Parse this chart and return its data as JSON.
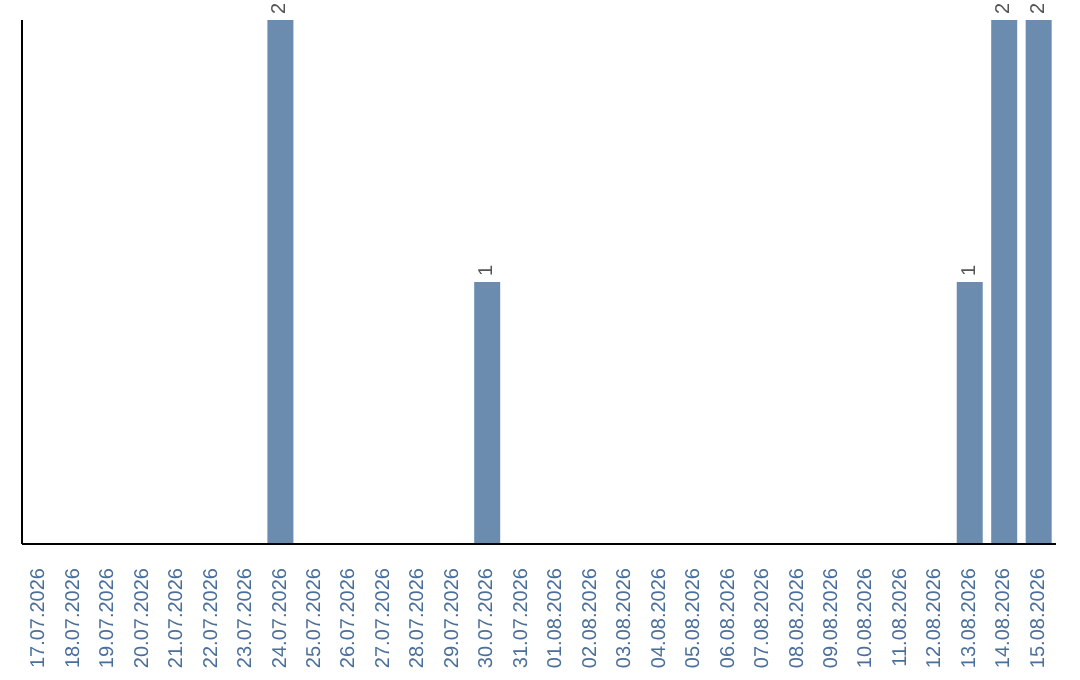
{
  "chart_data": {
    "type": "bar",
    "categories": [
      "17.07.2026",
      "18.07.2026",
      "19.07.2026",
      "20.07.2026",
      "21.07.2026",
      "22.07.2026",
      "23.07.2026",
      "24.07.2026",
      "25.07.2026",
      "26.07.2026",
      "27.07.2026",
      "28.07.2026",
      "29.07.2026",
      "30.07.2026",
      "31.07.2026",
      "01.08.2026",
      "02.08.2026",
      "03.08.2026",
      "04.08.2026",
      "05.08.2026",
      "06.08.2026",
      "07.08.2026",
      "08.08.2026",
      "09.08.2026",
      "10.08.2026",
      "11.08.2026",
      "12.08.2026",
      "13.08.2026",
      "14.08.2026",
      "15.08.2026"
    ],
    "values": [
      0,
      0,
      0,
      0,
      0,
      0,
      0,
      2,
      0,
      0,
      0,
      0,
      0,
      1,
      0,
      0,
      0,
      0,
      0,
      0,
      0,
      0,
      0,
      0,
      0,
      0,
      0,
      1,
      2,
      2
    ],
    "value_labels": [
      null,
      null,
      null,
      null,
      null,
      null,
      null,
      "2",
      null,
      null,
      null,
      null,
      null,
      "1",
      null,
      null,
      null,
      null,
      null,
      null,
      null,
      null,
      null,
      null,
      null,
      null,
      null,
      "1",
      "2",
      "2"
    ],
    "color": "#6b8cae",
    "ylim": [
      0,
      2
    ]
  }
}
